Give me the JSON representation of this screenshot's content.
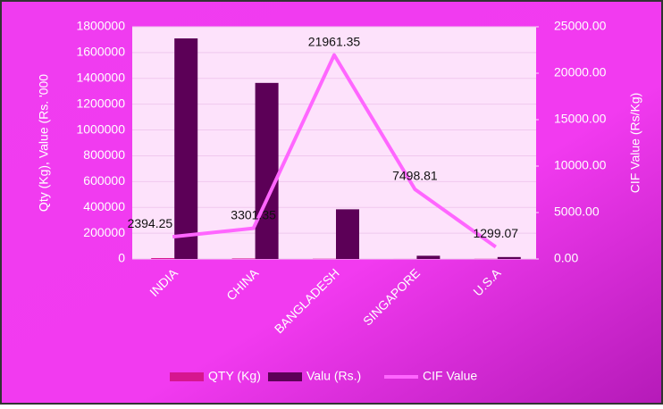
{
  "chart_data": {
    "type": "bar_line",
    "categories": [
      "INDIA",
      "CHINA",
      "BANGLADESH",
      "SINGAPORE",
      "U.S.A"
    ],
    "series": [
      {
        "name": "QTY (Kg)",
        "color": "#d6168f",
        "type": "bar",
        "values": [
          7000,
          4000,
          1800,
          300,
          1200
        ]
      },
      {
        "name": "Valu (Rs.)",
        "color": "#5c0057",
        "type": "bar",
        "values": [
          1710000,
          1365000,
          385000,
          25000,
          15000
        ]
      },
      {
        "name": "CIF Value",
        "color": "#ff66ff",
        "type": "line",
        "axis": "y2",
        "values": [
          2394.25,
          3301.35,
          21961.35,
          7498.81,
          1299.07
        ]
      }
    ],
    "ylabel": "Qty (Kg), Value (Rs. '000",
    "y2label": "CIF Value (Rs/Kg)",
    "ylim": [
      0,
      1800000
    ],
    "yticks": [
      0,
      200000,
      400000,
      600000,
      800000,
      1000000,
      1200000,
      1400000,
      1600000,
      1800000
    ],
    "y2lim": [
      0,
      25000
    ],
    "y2ticks": [
      {
        "value": 0,
        "label": "0.00"
      },
      {
        "value": 5000,
        "label": "5000.00"
      },
      {
        "value": 10000,
        "label": "10000.00"
      },
      {
        "value": 15000,
        "label": "15000.00"
      },
      {
        "value": 20000,
        "label": "20000.00"
      },
      {
        "value": 25000,
        "label": "25000.00"
      }
    ],
    "grid": true,
    "legend": "bottom"
  }
}
